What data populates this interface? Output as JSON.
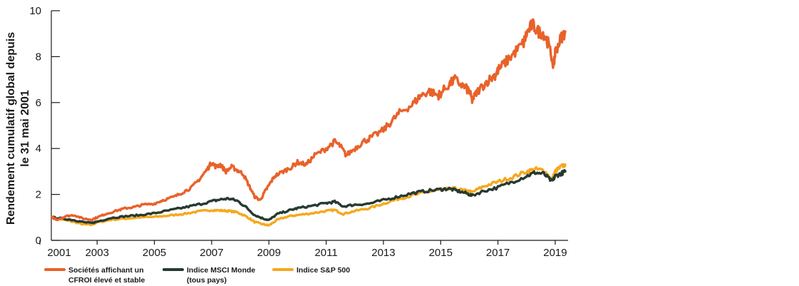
{
  "chart_data": {
    "type": "line",
    "ylabel": [
      "Rendement cumulatif global depuis",
      "le 31 mai 2001"
    ],
    "xlabel": "",
    "xlim": [
      2001.4,
      2019.45
    ],
    "ylim": [
      0,
      10
    ],
    "x_ticks": [
      2001,
      2003,
      2005,
      2007,
      2009,
      2011,
      2013,
      2015,
      2017,
      2019
    ],
    "y_ticks": [
      0,
      2,
      4,
      6,
      8,
      10
    ],
    "grid": false,
    "legend_position": "bottom-left",
    "series": [
      {
        "name": [
          "Sociétés affichant un",
          "CFROI élevé et stable"
        ],
        "color": "#e8622a",
        "x": [
          2001.42,
          2001.6,
          2001.9,
          2002.2,
          2002.5,
          2002.8,
          2003.0,
          2003.3,
          2003.7,
          2004.0,
          2004.3,
          2004.6,
          2005.0,
          2005.3,
          2005.7,
          2006.0,
          2006.3,
          2006.6,
          2006.85,
          2007.0,
          2007.15,
          2007.3,
          2007.5,
          2007.7,
          2007.9,
          2008.1,
          2008.3,
          2008.5,
          2008.7,
          2008.85,
          2009.0,
          2009.2,
          2009.5,
          2009.8,
          2010.0,
          2010.3,
          2010.6,
          2011.0,
          2011.3,
          2011.5,
          2011.7,
          2012.0,
          2012.3,
          2012.6,
          2013.0,
          2013.3,
          2013.6,
          2014.0,
          2014.3,
          2014.6,
          2014.9,
          2015.0,
          2015.3,
          2015.5,
          2015.8,
          2016.0,
          2016.1,
          2016.3,
          2016.6,
          2016.9,
          2017.0,
          2017.3,
          2017.6,
          2017.9,
          2018.0,
          2018.2,
          2018.4,
          2018.6,
          2018.75,
          2018.95,
          2019.0,
          2019.2,
          2019.35
        ],
        "values": [
          1.0,
          0.9,
          1.05,
          1.1,
          0.95,
          0.9,
          1.0,
          1.15,
          1.3,
          1.4,
          1.45,
          1.55,
          1.6,
          1.75,
          1.9,
          2.1,
          2.3,
          2.7,
          3.1,
          3.4,
          3.2,
          3.3,
          3.0,
          3.2,
          3.05,
          2.9,
          2.4,
          1.9,
          1.75,
          2.1,
          2.4,
          2.8,
          3.0,
          3.2,
          3.4,
          3.3,
          3.7,
          4.0,
          4.3,
          4.1,
          3.7,
          4.0,
          4.3,
          4.5,
          4.8,
          5.2,
          5.6,
          5.9,
          6.3,
          6.5,
          6.3,
          6.4,
          6.8,
          7.0,
          6.7,
          6.5,
          6.1,
          6.5,
          6.9,
          7.2,
          7.4,
          7.8,
          8.2,
          8.6,
          9.0,
          9.4,
          9.1,
          9.0,
          8.6,
          7.6,
          8.2,
          8.8,
          9.1
        ]
      },
      {
        "name": [
          "Indice MSCI Monde",
          "(tous pays)"
        ],
        "color": "#263a30",
        "x": [
          2001.42,
          2001.8,
          2002.2,
          2002.5,
          2002.8,
          2003.0,
          2003.5,
          2004.0,
          2004.5,
          2005.0,
          2005.5,
          2006.0,
          2006.5,
          2007.0,
          2007.3,
          2007.6,
          2007.9,
          2008.2,
          2008.5,
          2008.8,
          2009.0,
          2009.3,
          2009.7,
          2010.0,
          2010.5,
          2011.0,
          2011.3,
          2011.6,
          2012.0,
          2012.5,
          2013.0,
          2013.5,
          2014.0,
          2014.5,
          2015.0,
          2015.3,
          2015.6,
          2015.9,
          2016.1,
          2016.5,
          2017.0,
          2017.5,
          2018.0,
          2018.3,
          2018.6,
          2018.9,
          2019.0,
          2019.2,
          2019.35
        ],
        "values": [
          1.0,
          0.95,
          0.88,
          0.8,
          0.75,
          0.82,
          0.98,
          1.05,
          1.1,
          1.18,
          1.3,
          1.42,
          1.55,
          1.7,
          1.78,
          1.82,
          1.72,
          1.45,
          1.1,
          0.95,
          0.88,
          1.15,
          1.3,
          1.4,
          1.5,
          1.62,
          1.68,
          1.48,
          1.55,
          1.6,
          1.75,
          1.9,
          2.05,
          2.15,
          2.22,
          2.25,
          2.15,
          2.05,
          1.95,
          2.15,
          2.3,
          2.55,
          2.8,
          2.95,
          2.9,
          2.55,
          2.8,
          2.9,
          3.0
        ]
      },
      {
        "name": "Indice S&P 500",
        "color": "#f5a81e",
        "x": [
          2001.42,
          2001.8,
          2002.2,
          2002.5,
          2002.8,
          2003.0,
          2003.5,
          2004.0,
          2004.5,
          2005.0,
          2005.5,
          2006.0,
          2006.5,
          2007.0,
          2007.3,
          2007.6,
          2007.9,
          2008.2,
          2008.5,
          2008.8,
          2009.0,
          2009.3,
          2009.7,
          2010.0,
          2010.5,
          2011.0,
          2011.3,
          2011.6,
          2012.0,
          2012.5,
          2013.0,
          2013.5,
          2014.0,
          2014.5,
          2015.0,
          2015.5,
          2015.9,
          2016.1,
          2016.5,
          2017.0,
          2017.5,
          2018.0,
          2018.3,
          2018.6,
          2018.9,
          2019.0,
          2019.2,
          2019.35
        ],
        "values": [
          1.0,
          0.9,
          0.8,
          0.7,
          0.68,
          0.78,
          0.9,
          0.95,
          1.0,
          1.02,
          1.08,
          1.15,
          1.25,
          1.32,
          1.3,
          1.28,
          1.22,
          1.05,
          0.8,
          0.7,
          0.65,
          0.9,
          1.05,
          1.1,
          1.18,
          1.28,
          1.32,
          1.15,
          1.28,
          1.4,
          1.6,
          1.8,
          1.95,
          2.1,
          2.2,
          2.25,
          2.15,
          2.1,
          2.35,
          2.55,
          2.75,
          3.0,
          3.1,
          3.05,
          2.65,
          3.0,
          3.2,
          3.3
        ]
      }
    ]
  }
}
